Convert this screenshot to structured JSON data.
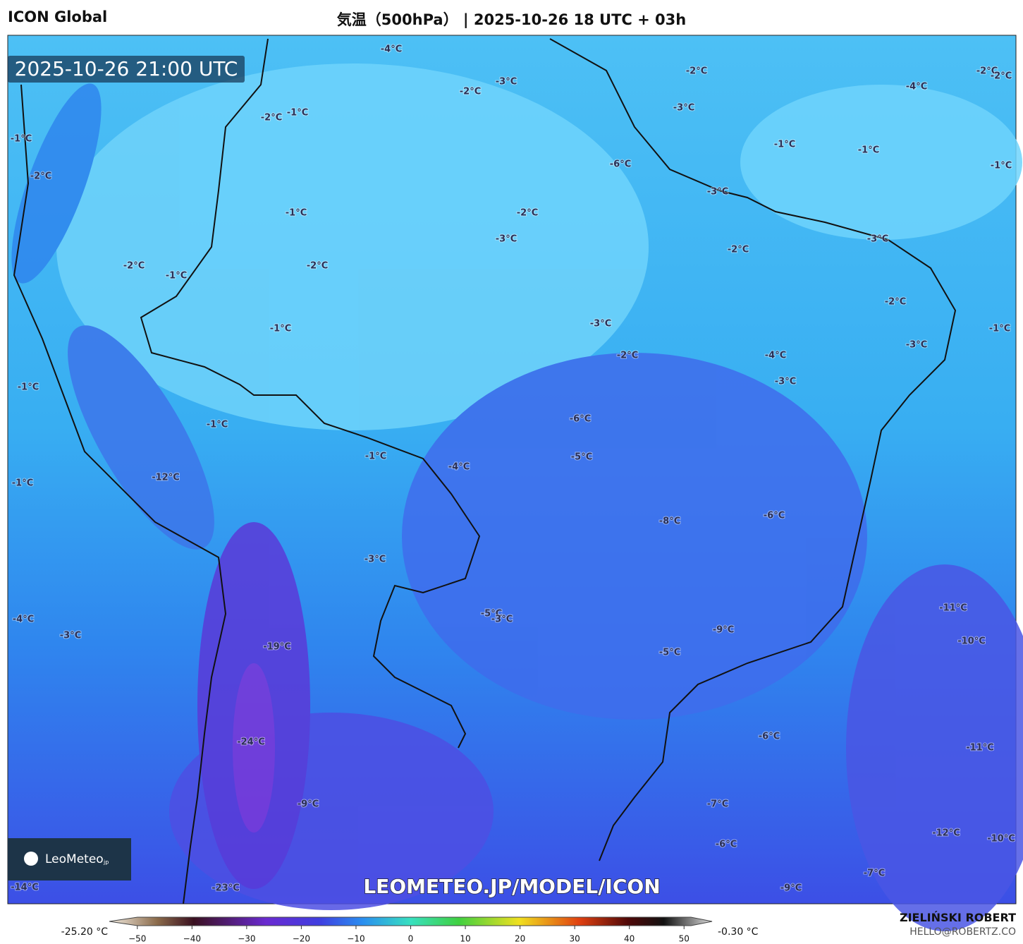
{
  "header": {
    "model": "ICON Global",
    "title": "気温（500hPa） | 2025-10-26 18 UTC + 03h"
  },
  "map": {
    "valid_time": "2025-10-26 21:00 UTC",
    "watermark": "LEOMETEO.JP/MODEL/ICON",
    "logo": {
      "name": "LeoMeteo",
      "suffix": "jp"
    },
    "labels": [
      "-4°C",
      "-2°C",
      "-2°C",
      "-2°C",
      "-4°C",
      "-3°C",
      "-2°C",
      "-3°C",
      "-2°C",
      "-1°C",
      "-1°C",
      "-1°C",
      "-1°C",
      "-1°C",
      "-6°C",
      "-2°C",
      "-3°C",
      "-1°C",
      "-2°C",
      "-3°C",
      "-2°C",
      "-3°C",
      "-2°C",
      "-2°C",
      "-1°C",
      "-2°C",
      "-1°C",
      "-3°C",
      "-1°C",
      "-2°C",
      "-4°C",
      "-3°C",
      "-3°C",
      "-1°C",
      "-6°C",
      "-1°C",
      "-5°C",
      "-1°C",
      "-4°C",
      "-12°C",
      "-1°C",
      "-8°C",
      "-6°C",
      "-3°C",
      "-5°C",
      "-3°C",
      "-11°C",
      "-4°C",
      "-3°C",
      "-9°C",
      "-10°C",
      "-19°C",
      "-5°C",
      "-6°C",
      "-24°C",
      "-11°C",
      "-9°C",
      "-7°C",
      "-12°C",
      "-10°C",
      "-6°C",
      "-7°C",
      "-14°C",
      "-23°C",
      "-9°C"
    ]
  },
  "colorbar": {
    "min_label": "-25.20 °C",
    "max_label": "-0.30 °C",
    "ticks": [
      {
        "value": -50,
        "label": "−50"
      },
      {
        "value": -40,
        "label": "−40"
      },
      {
        "value": -30,
        "label": "−30"
      },
      {
        "value": -20,
        "label": "−20"
      },
      {
        "value": -10,
        "label": "−10"
      },
      0,
      10,
      20,
      30,
      40,
      50
    ],
    "lim": [
      -55,
      55
    ]
  },
  "credits": {
    "author": "ZIELIŃSKI ROBERT",
    "email": "HELLO@ROBERTZ.CO"
  }
}
